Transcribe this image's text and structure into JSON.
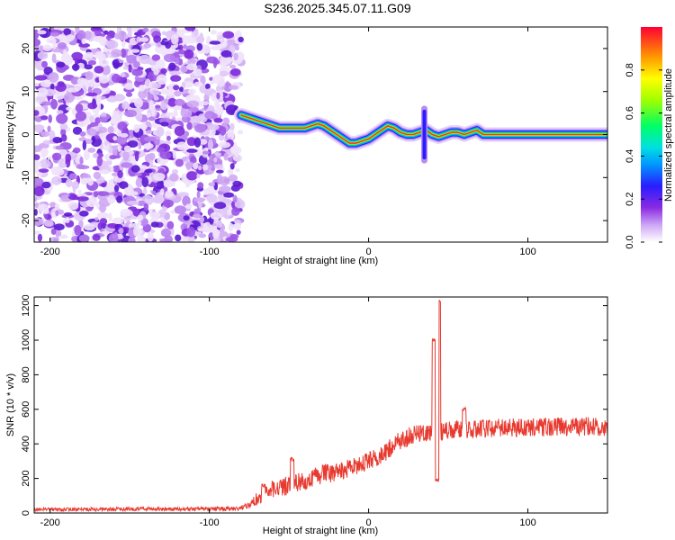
{
  "title": "S236.2025.345.07.11.G09",
  "chart_data": [
    {
      "type": "heatmap",
      "name": "spectrogram",
      "xlabel": "Height of straight line (km)",
      "ylabel": "Frequency (Hz)",
      "xlim": [
        -210,
        150
      ],
      "ylim": [
        -25,
        25
      ],
      "xticks": [
        -200,
        -100,
        0,
        100
      ],
      "yticks": [
        -20,
        -10,
        0,
        10,
        20
      ],
      "noise_region_x": [
        -210,
        -80
      ],
      "ridge_x": [
        -80,
        -76,
        -72,
        -68,
        -64,
        -60,
        -56,
        -52,
        -48,
        -44,
        -40,
        -36,
        -32,
        -28,
        -24,
        -20,
        -16,
        -12,
        -8,
        -4,
        0,
        4,
        8,
        12,
        16,
        20,
        24,
        28,
        32,
        36,
        40,
        44,
        48,
        52,
        56,
        60,
        64,
        68,
        72,
        80,
        90,
        100,
        110,
        120,
        130,
        140,
        150
      ],
      "ridge_y": [
        4.5,
        4,
        3.5,
        3,
        2.5,
        2,
        1.5,
        1.5,
        1.5,
        1.5,
        1.5,
        2,
        2.5,
        2,
        1,
        0,
        -1,
        -2,
        -2,
        -1.5,
        -1,
        0,
        1,
        2,
        1.5,
        0.5,
        0,
        0,
        0.5,
        1,
        0,
        -0.5,
        0,
        0.5,
        0.5,
        0,
        0.5,
        1,
        0,
        0,
        0,
        0,
        0,
        0,
        0,
        0,
        0
      ],
      "spike_x": 35,
      "spike_range": [
        -6,
        6
      ],
      "colorbar": {
        "label": "Normalized spectral amplitude",
        "range": [
          0,
          1
        ],
        "ticks": [
          "0.0",
          "0.2",
          "0.4",
          "0.6",
          "0.8"
        ]
      }
    },
    {
      "type": "line",
      "name": "snr",
      "xlabel": "Height of straight line (km)",
      "ylabel": "SNR (10 * v/v)",
      "xlim": [
        -210,
        150
      ],
      "ylim": [
        0,
        1250
      ],
      "xticks": [
        -200,
        -100,
        0,
        100
      ],
      "yticks": [
        0,
        200,
        400,
        600,
        800,
        1000,
        1200
      ],
      "line_color": "#e8392f",
      "trend_x": [
        -210,
        -80,
        -75,
        -70,
        -60,
        -50,
        -40,
        -30,
        -20,
        -10,
        0,
        10,
        20,
        30,
        40,
        50,
        60,
        80,
        100,
        120,
        150
      ],
      "trend_y": [
        20,
        25,
        50,
        80,
        140,
        160,
        185,
        220,
        240,
        260,
        300,
        350,
        420,
        460,
        470,
        475,
        490,
        490,
        495,
        500,
        500
      ],
      "noise_amplitude_y": [
        10,
        12,
        25,
        40,
        50,
        55,
        55,
        55,
        55,
        55,
        55,
        55,
        55,
        55,
        55,
        55,
        55,
        55,
        55,
        55,
        55
      ],
      "peaks": [
        {
          "x": -66,
          "y": 160
        },
        {
          "x": -48,
          "y": 310
        },
        {
          "x": 41,
          "y": 1000
        },
        {
          "x": 44,
          "y": 1230
        },
        {
          "x": 43,
          "y": 190
        },
        {
          "x": 60,
          "y": 600
        }
      ]
    }
  ]
}
